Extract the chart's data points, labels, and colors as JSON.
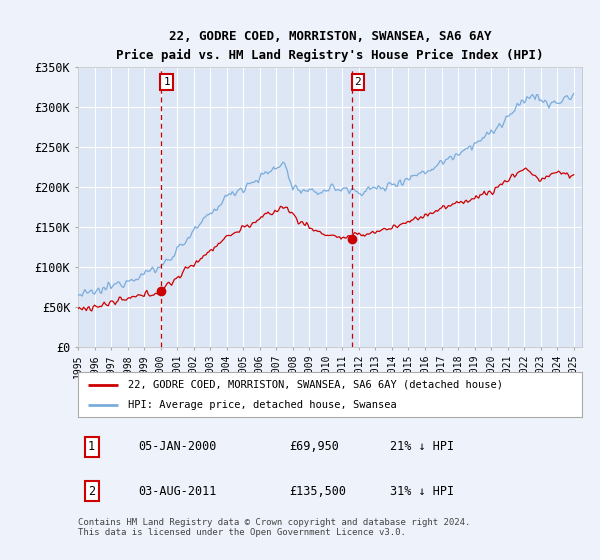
{
  "title": "22, GODRE COED, MORRISTON, SWANSEA, SA6 6AY",
  "subtitle": "Price paid vs. HM Land Registry's House Price Index (HPI)",
  "background_color": "#eef2fa",
  "plot_bg_color": "#dce6f5",
  "grid_color": "#ffffff",
  "ylim": [
    0,
    350000
  ],
  "yticks": [
    0,
    50000,
    100000,
    150000,
    200000,
    250000,
    300000,
    350000
  ],
  "ytick_labels": [
    "£0",
    "£50K",
    "£100K",
    "£150K",
    "£200K",
    "£250K",
    "£300K",
    "£350K"
  ],
  "xlim_start": 1995.0,
  "xlim_end": 2025.5,
  "transaction1_x": 2000.01,
  "transaction1_y": 69950,
  "transaction1_label": "05-JAN-2000",
  "transaction1_price": "£69,950",
  "transaction1_hpi": "21% ↓ HPI",
  "transaction2_x": 2011.58,
  "transaction2_y": 135500,
  "transaction2_label": "03-AUG-2011",
  "transaction2_price": "£135,500",
  "transaction2_hpi": "31% ↓ HPI",
  "legend_line1": "22, GODRE COED, MORRISTON, SWANSEA, SA6 6AY (detached house)",
  "legend_line2": "HPI: Average price, detached house, Swansea",
  "footer": "Contains HM Land Registry data © Crown copyright and database right 2024.\nThis data is licensed under the Open Government Licence v3.0.",
  "red_color": "#cc0000",
  "blue_color": "#7aacdc",
  "dashed_color": "#cc0000"
}
